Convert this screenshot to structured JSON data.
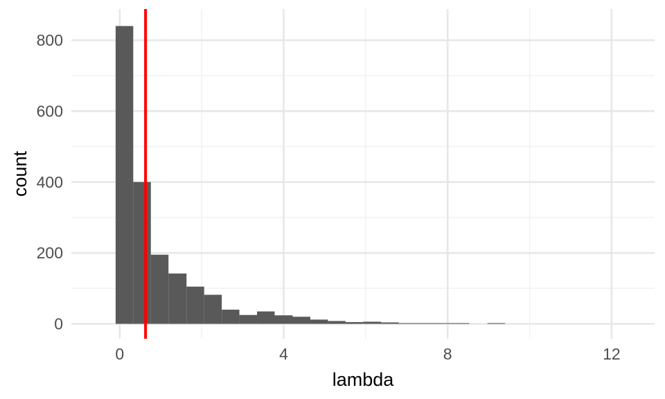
{
  "figure": {
    "background": "#ffffff"
  },
  "chart_data": {
    "type": "histogram",
    "title": "",
    "xlabel": "lambda",
    "ylabel": "count",
    "x_tick_values": [
      0,
      4,
      8,
      12
    ],
    "x_tick_labels": [
      "0",
      "4",
      "8",
      "12"
    ],
    "y_tick_values": [
      0,
      200,
      400,
      600,
      800
    ],
    "y_tick_labels": [
      "0",
      "200",
      "400",
      "600",
      "800"
    ],
    "x_minor_gridlines": [
      2,
      6,
      10
    ],
    "y_minor_gridlines": [
      100,
      300,
      500,
      700
    ],
    "xlim": [
      -1.18,
      13.05
    ],
    "ylim": [
      -42,
      888
    ],
    "grid": "on",
    "legend": "none",
    "binwidth": 0.432,
    "bins": [
      {
        "from": -0.1,
        "to": 0.33,
        "count": 840
      },
      {
        "from": 0.33,
        "to": 0.76,
        "count": 400
      },
      {
        "from": 0.76,
        "to": 1.19,
        "count": 195
      },
      {
        "from": 1.19,
        "to": 1.63,
        "count": 142
      },
      {
        "from": 1.63,
        "to": 2.06,
        "count": 105
      },
      {
        "from": 2.06,
        "to": 2.49,
        "count": 82
      },
      {
        "from": 2.49,
        "to": 2.92,
        "count": 40
      },
      {
        "from": 2.92,
        "to": 3.35,
        "count": 25
      },
      {
        "from": 3.35,
        "to": 3.78,
        "count": 35
      },
      {
        "from": 3.78,
        "to": 4.22,
        "count": 24
      },
      {
        "from": 4.22,
        "to": 4.65,
        "count": 20
      },
      {
        "from": 4.65,
        "to": 5.08,
        "count": 12
      },
      {
        "from": 5.08,
        "to": 5.51,
        "count": 8
      },
      {
        "from": 5.51,
        "to": 5.94,
        "count": 5
      },
      {
        "from": 5.94,
        "to": 6.38,
        "count": 6
      },
      {
        "from": 6.38,
        "to": 6.81,
        "count": 4
      },
      {
        "from": 6.81,
        "to": 7.24,
        "count": 2
      },
      {
        "from": 7.24,
        "to": 7.67,
        "count": 2
      },
      {
        "from": 7.67,
        "to": 8.1,
        "count": 2
      },
      {
        "from": 8.1,
        "to": 8.53,
        "count": 2
      },
      {
        "from": 8.53,
        "to": 8.97,
        "count": 0
      },
      {
        "from": 8.97,
        "to": 9.4,
        "count": 2
      }
    ],
    "vline": {
      "x": 0.63,
      "color": "#ff0000"
    }
  },
  "colors": {
    "bar": "#595959",
    "vline": "#ff0000",
    "grid_major": "#e7e7e7",
    "grid_minor": "#f2f2f2",
    "tick_label": "#4d4d4d",
    "axis_title": "#000000",
    "background": "#ffffff"
  }
}
